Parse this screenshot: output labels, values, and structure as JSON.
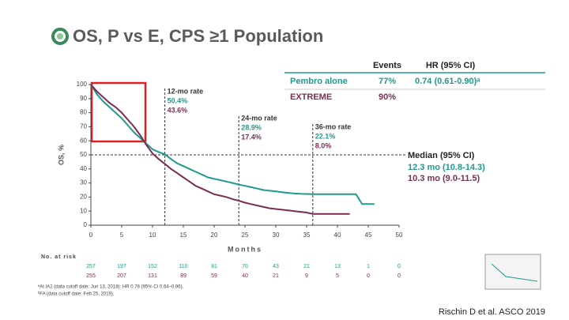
{
  "chart_data": {
    "type": "line",
    "title": "OS, P vs E, CPS ≥1 Population",
    "x_label": "Months",
    "y_label": "OS, %",
    "xlim": [
      0,
      50
    ],
    "ylim": [
      0,
      100
    ],
    "xticks": [
      0,
      5,
      10,
      15,
      20,
      25,
      30,
      35,
      40,
      45,
      50
    ],
    "yticks": [
      0,
      10,
      20,
      30,
      40,
      50,
      60,
      70,
      80,
      90,
      100
    ],
    "x": [
      0,
      1,
      2,
      3,
      4,
      5,
      6,
      7,
      8,
      9,
      10,
      11,
      12,
      13,
      14,
      15,
      16,
      17,
      18,
      19,
      20,
      21,
      22,
      23,
      24,
      25,
      26,
      27,
      28,
      29,
      30,
      31,
      32,
      33,
      34,
      35,
      36,
      37,
      38,
      39,
      40,
      41,
      42,
      43,
      44,
      45,
      46
    ],
    "series": [
      {
        "name": "Pembro alone",
        "color": "#1f9a8c",
        "values": [
          100,
          93,
          88,
          84,
          80,
          76,
          71,
          66,
          62,
          58,
          54,
          52,
          50.4,
          47,
          44,
          42,
          40,
          38,
          36,
          34,
          33,
          32,
          31,
          30,
          28.9,
          28,
          27,
          26,
          25,
          24.5,
          24,
          23.5,
          23,
          22.5,
          22.3,
          22.2,
          22.1,
          22,
          22,
          22,
          22,
          22,
          22,
          22,
          15,
          15,
          15
        ]
      },
      {
        "name": "EXTREME",
        "color": "#7b2d52",
        "values": [
          100,
          95,
          91,
          87,
          84,
          80,
          75,
          70,
          64,
          57,
          51,
          47,
          43.6,
          40,
          37,
          34,
          31,
          28,
          26,
          24,
          22,
          21,
          20,
          18.5,
          17.4,
          16,
          15,
          14,
          13,
          12,
          11.5,
          11,
          10.5,
          10,
          9.5,
          9,
          8,
          8,
          8,
          8,
          8,
          8,
          8,
          null,
          null,
          null,
          null
        ]
      }
    ],
    "rate_markers": [
      {
        "month": 12,
        "label": "12-mo rate",
        "value_labels": [
          "50.4%",
          "43.6%"
        ]
      },
      {
        "month": 24,
        "label": "24-mo rate",
        "value_labels": [
          "28.9%",
          "17.4%"
        ]
      },
      {
        "month": 36,
        "label": "36-mo rate",
        "value_labels": [
          "22.1%",
          "8.0%"
        ]
      }
    ],
    "median_line": 50,
    "median": {
      "title": "Median (95% CI)",
      "values": [
        "12.3 mo (10.8-14.3)",
        "10.3 mo (9.0-11.5)"
      ]
    },
    "legend_table": {
      "headers": [
        "Events",
        "HR (95% CI)"
      ],
      "rows": [
        [
          "77%",
          "0.74 (0.61-0.90)ᵃ"
        ],
        [
          "90%"
        ]
      ]
    },
    "risk_table": {
      "label": "No. at risk",
      "rows": [
        [
          257,
          197,
          152,
          110,
          81,
          70,
          43,
          21,
          13,
          1,
          0
        ],
        [
          255,
          207,
          131,
          89,
          59,
          40,
          21,
          9,
          5,
          0,
          0
        ]
      ]
    },
    "footnotes": [
      "ᵃAt IA2 (data cutoff date: Jun 13, 2018): HR 0.78 (95% CI 0.64–0.96).",
      "ᵇFA (data cutoff date: Feb 25, 2019)."
    ],
    "citation": "Rischin D et al. ASCO 2019"
  }
}
